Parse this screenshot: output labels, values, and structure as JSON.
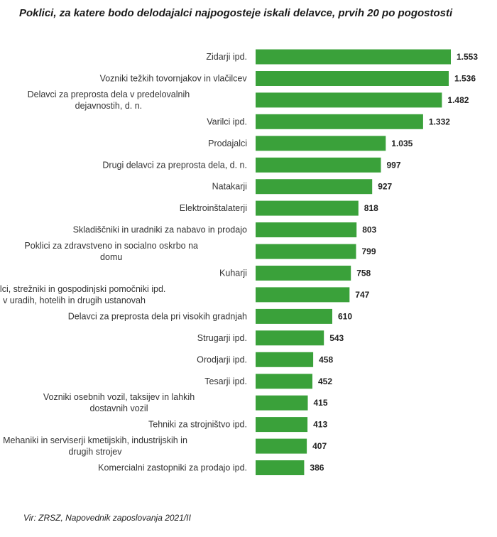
{
  "chart_data": {
    "type": "bar",
    "orientation": "horizontal",
    "title": "Poklici, za katere bodo delodajalci najpogosteje iskali delavce, prvih 20 po pogostosti",
    "categories": [
      [
        "Zidarji ipd."
      ],
      [
        "Vozniki težkih tovornjakov in vlačilcev"
      ],
      [
        "Delavci za preprosta dela v predelovalnih",
        "dejavnostih, d. n."
      ],
      [
        "Varilci ipd."
      ],
      [
        "Prodajalci"
      ],
      [
        "Drugi delavci za preprosta dela, d. n."
      ],
      [
        "Natakarji"
      ],
      [
        "Elektroinštalaterji"
      ],
      [
        "Skladiščniki in uradniki za nabavo in prodajo"
      ],
      [
        "Poklici za zdravstveno in socialno oskrbo na",
        "domu"
      ],
      [
        "Kuharji"
      ],
      [
        "Čistilci, strežniki in gospodinjski pomočniki ipd.",
        "v uradih, hotelih in drugih ustanovah"
      ],
      [
        "Delavci za preprosta dela pri visokih gradnjah"
      ],
      [
        "Strugarji ipd."
      ],
      [
        "Orodjarji ipd."
      ],
      [
        "Tesarji ipd."
      ],
      [
        "Vozniki osebnih vozil, taksijev in lahkih",
        "dostavnih vozil"
      ],
      [
        "Tehniki za strojništvo ipd."
      ],
      [
        "Mehaniki in serviserji kmetijskih, industrijskih in",
        "drugih strojev"
      ],
      [
        "Komercialni zastopniki za prodajo ipd."
      ]
    ],
    "values": [
      1553,
      1536,
      1482,
      1332,
      1035,
      997,
      927,
      818,
      803,
      799,
      758,
      747,
      610,
      543,
      458,
      452,
      415,
      413,
      407,
      386
    ],
    "value_labels": [
      "1.553",
      "1.536",
      "1.482",
      "1.332",
      "1.035",
      "997",
      "927",
      "818",
      "803",
      "799",
      "758",
      "747",
      "610",
      "543",
      "458",
      "452",
      "415",
      "413",
      "407",
      "386"
    ],
    "xlim": [
      0,
      1553
    ],
    "bar_color": "#3aa13a",
    "grid": false,
    "legend": "none"
  },
  "source": "Vir: ZRSZ, Napovednik zaposlovanja 2021/II"
}
